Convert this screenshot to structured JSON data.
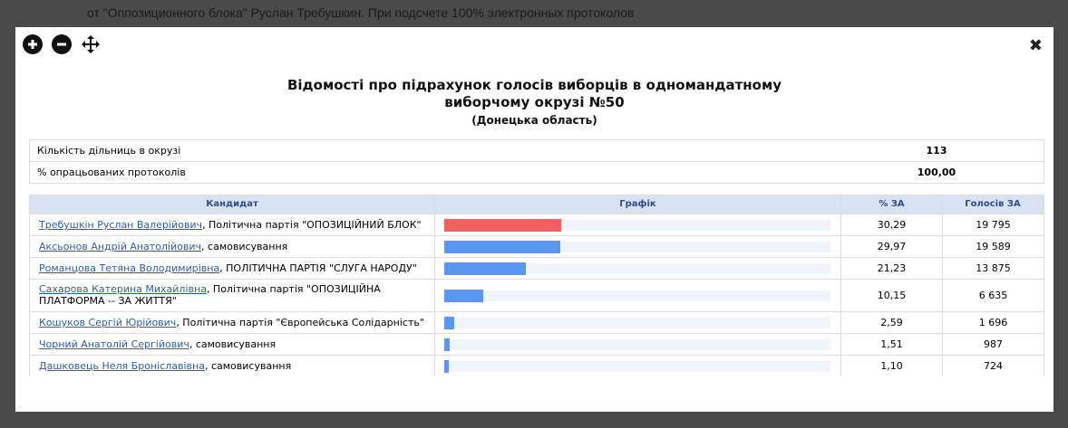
{
  "background_text": "от \"Оппозиционного блока\" Руслан Требушкин. При подсчете 100% электронных протоколов",
  "report": {
    "title_line1": "Відомості про підрахунок голосів виборців в одномандатному",
    "title_line2": "виборчому окрузі №50",
    "subtitle": "(Донецька область)",
    "info": [
      {
        "label": "Кількість дільниць в окрузі",
        "value": 113
      },
      {
        "label": "% опрацьованих протоколів",
        "value": "100,00"
      }
    ],
    "columns": [
      "Кандидат",
      "Графік",
      "% ЗА",
      "Голосів ЗА"
    ],
    "xlim": [
      0,
      100
    ],
    "rows": [
      {
        "name": "Требушкін Руслан Валерійович",
        "party": ", Політична партія \"ОПОЗИЦІЙНИЙ БЛОК\"",
        "percent": 30.29,
        "percent_label": "30,29",
        "votes": "19 795",
        "color": "#f06262"
      },
      {
        "name": "Аксьонов Андрій Анатолійович",
        "party": ", самовисування",
        "percent": 29.97,
        "percent_label": "29,97",
        "votes": "19 589",
        "color": "#5b97f0"
      },
      {
        "name": "Романцова Тетяна Володимирівна",
        "party": ", ПОЛІТИЧНА ПАРТІЯ \"СЛУГА НАРОДУ\"",
        "percent": 21.23,
        "percent_label": "21,23",
        "votes": "13 875",
        "color": "#5b97f0"
      },
      {
        "name": "Сахарова Катерина Михайлівна",
        "party": ", Політична партія \"ОПОЗИЦІЙНА ПЛАТФОРМА -- ЗА ЖИТТЯ\"",
        "percent": 10.15,
        "percent_label": "10,15",
        "votes": "6 635",
        "color": "#5b97f0"
      },
      {
        "name": "Кошуков Сергій Юрійович",
        "party": ", Політична партія \"Європейська Солідарність\"",
        "percent": 2.59,
        "percent_label": "2,59",
        "votes": "1 696",
        "color": "#5b97f0"
      },
      {
        "name": "Чорний Анатолій Сергійович",
        "party": ", самовисування",
        "percent": 1.51,
        "percent_label": "1,51",
        "votes": "987",
        "color": "#5b97f0"
      },
      {
        "name": "Дашковець Неля Броніславівна",
        "party": ", самовисування",
        "percent": 1.1,
        "percent_label": "1,10",
        "votes": "724",
        "color": "#5b97f0"
      }
    ]
  }
}
